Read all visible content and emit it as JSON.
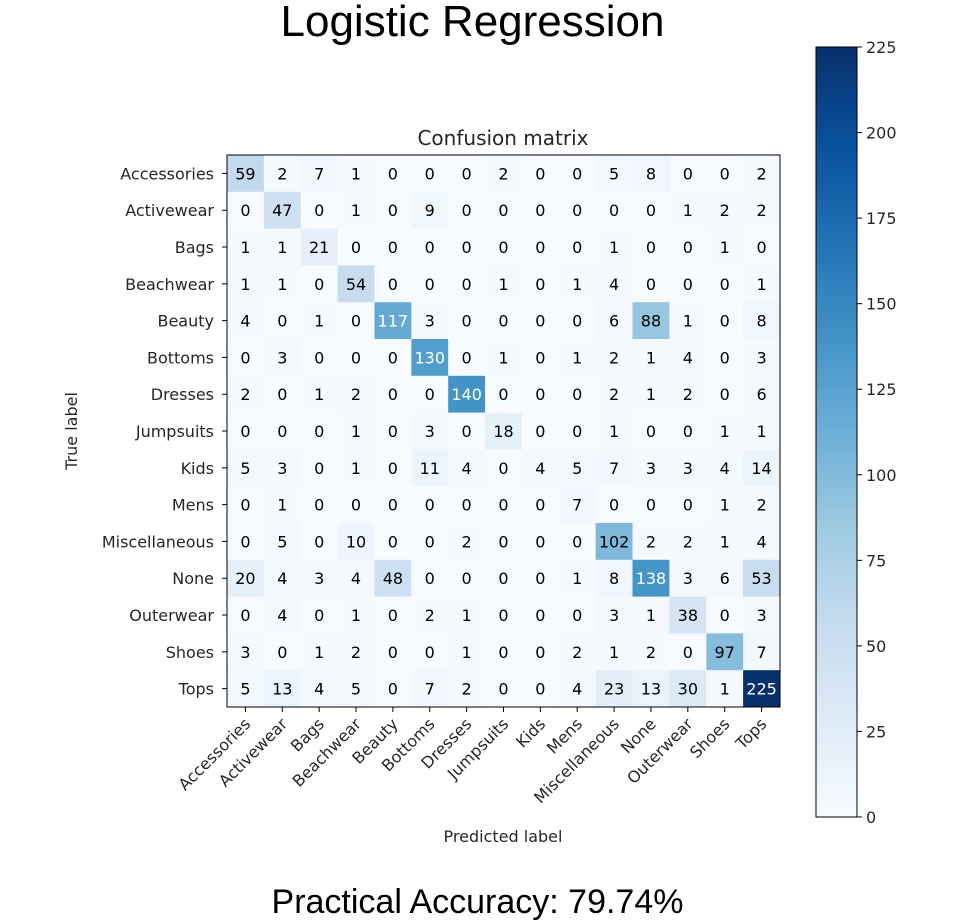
{
  "figure": {
    "title": "Logistic Regression",
    "footer": "Practical Accuracy: 79.74%"
  },
  "chart_data": {
    "type": "heatmap",
    "title": "Confusion matrix",
    "xlabel": "Predicted label",
    "ylabel": "True label",
    "categories": [
      "Accessories",
      "Activewear",
      "Bags",
      "Beachwear",
      "Beauty",
      "Bottoms",
      "Dresses",
      "Jumpsuits",
      "Kids",
      "Mens",
      "Miscellaneous",
      "None",
      "Outerwear",
      "Shoes",
      "Tops"
    ],
    "matrix": [
      [
        59,
        2,
        7,
        1,
        0,
        0,
        0,
        2,
        0,
        0,
        5,
        8,
        0,
        0,
        2
      ],
      [
        0,
        47,
        0,
        1,
        0,
        9,
        0,
        0,
        0,
        0,
        0,
        0,
        1,
        2,
        2
      ],
      [
        1,
        1,
        21,
        0,
        0,
        0,
        0,
        0,
        0,
        0,
        1,
        0,
        0,
        1,
        0
      ],
      [
        1,
        1,
        0,
        54,
        0,
        0,
        0,
        1,
        0,
        1,
        4,
        0,
        0,
        0,
        1
      ],
      [
        4,
        0,
        1,
        0,
        117,
        3,
        0,
        0,
        0,
        0,
        6,
        88,
        1,
        0,
        8
      ],
      [
        0,
        3,
        0,
        0,
        0,
        130,
        0,
        1,
        0,
        1,
        2,
        1,
        4,
        0,
        3
      ],
      [
        2,
        0,
        1,
        2,
        0,
        0,
        140,
        0,
        0,
        0,
        2,
        1,
        2,
        0,
        6
      ],
      [
        0,
        0,
        0,
        1,
        0,
        3,
        0,
        18,
        0,
        0,
        1,
        0,
        0,
        1,
        1
      ],
      [
        5,
        3,
        0,
        1,
        0,
        11,
        4,
        0,
        4,
        5,
        7,
        3,
        3,
        4,
        14
      ],
      [
        0,
        1,
        0,
        0,
        0,
        0,
        0,
        0,
        0,
        7,
        0,
        0,
        0,
        1,
        2
      ],
      [
        0,
        5,
        0,
        10,
        0,
        0,
        2,
        0,
        0,
        0,
        102,
        2,
        2,
        1,
        4
      ],
      [
        20,
        4,
        3,
        4,
        48,
        0,
        0,
        0,
        0,
        1,
        8,
        138,
        3,
        6,
        53
      ],
      [
        0,
        4,
        0,
        1,
        0,
        2,
        1,
        0,
        0,
        0,
        3,
        1,
        38,
        0,
        3
      ],
      [
        3,
        0,
        1,
        2,
        0,
        0,
        1,
        0,
        0,
        2,
        1,
        2,
        0,
        97,
        7
      ],
      [
        5,
        13,
        4,
        5,
        0,
        7,
        2,
        0,
        0,
        4,
        23,
        13,
        30,
        1,
        225
      ]
    ],
    "colorbar": {
      "min": 0,
      "max": 225,
      "ticks": [
        0,
        25,
        50,
        75,
        100,
        125,
        150,
        175,
        200,
        225
      ],
      "colormap": "Blues"
    },
    "text_threshold": 112.5
  }
}
